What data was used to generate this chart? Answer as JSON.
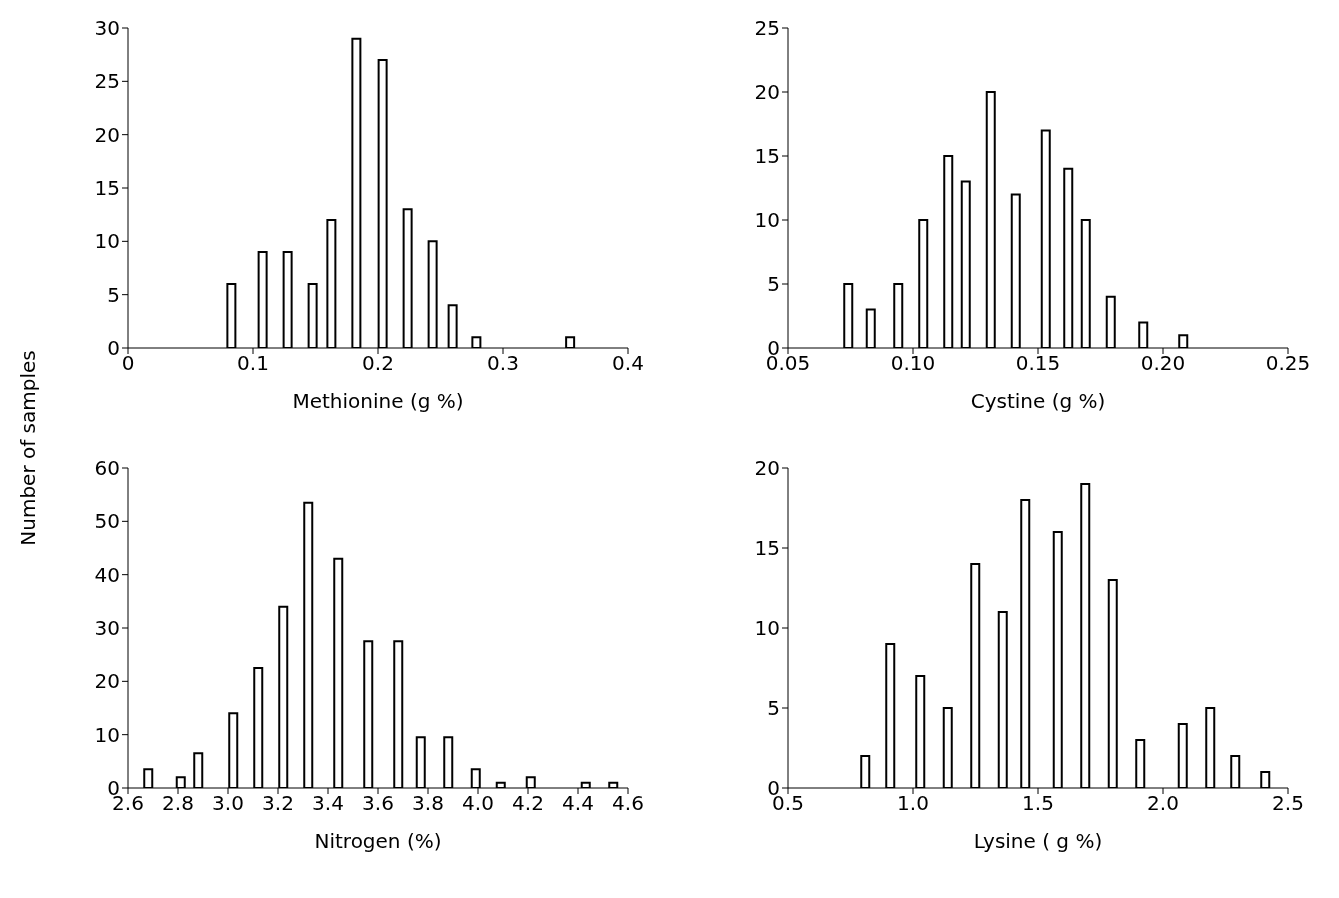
{
  "chart_data": [
    {
      "type": "bar",
      "xlabel": "Methionine (g %)",
      "ylabel": "Number of samples",
      "color": "#ffffff",
      "grid": false,
      "legend": false,
      "x": [
        0.083,
        0.108,
        0.128,
        0.148,
        0.163,
        0.183,
        0.204,
        0.224,
        0.244,
        0.26,
        0.279,
        0.354
      ],
      "values": [
        6,
        9,
        9,
        6,
        12,
        29,
        27,
        13,
        10,
        4,
        1,
        1
      ],
      "xlim": [
        0,
        0.4
      ],
      "xticks": [
        0,
        0.1,
        0.2,
        0.3,
        0.4
      ],
      "ylim": [
        0,
        30
      ],
      "yticks": [
        0,
        5,
        10,
        15,
        20,
        25,
        30
      ]
    },
    {
      "type": "bar",
      "xlabel": "Cystine (g %)",
      "color": "#ffffff",
      "grid": false,
      "legend": false,
      "x": [
        0.074,
        0.083,
        0.094,
        0.104,
        0.114,
        0.121,
        0.131,
        0.141,
        0.153,
        0.162,
        0.169,
        0.179,
        0.192,
        0.208
      ],
      "values": [
        5,
        3,
        5,
        10,
        15,
        13,
        20,
        12,
        17,
        14,
        10,
        4,
        2,
        1
      ],
      "xlim": [
        0.05,
        0.25
      ],
      "xticks": [
        0.05,
        {
          "value": 0.1,
          "label": "0.10"
        },
        0.15,
        {
          "value": 0.2,
          "label": "0.20"
        },
        0.25
      ],
      "ylim": [
        0,
        25
      ],
      "yticks": [
        0,
        5,
        10,
        15,
        20,
        25
      ]
    },
    {
      "type": "bar",
      "xlabel": "Nitrogen (%)",
      "color": "#ffffff",
      "grid": false,
      "legend": false,
      "x": [
        2.68,
        2.81,
        2.88,
        3.02,
        3.12,
        3.22,
        3.32,
        3.44,
        3.56,
        3.68,
        3.77,
        3.88,
        3.99,
        4.09,
        4.21,
        4.43,
        4.54
      ],
      "values": [
        3.5,
        2,
        6.5,
        14,
        22.5,
        34,
        53.5,
        43,
        27.5,
        27.5,
        9.5,
        9.5,
        3.5,
        1,
        2,
        1,
        1
      ],
      "xlim": [
        2.6,
        4.6
      ],
      "xticks": [
        2.6,
        2.8,
        {
          "value": 3.0,
          "label": "3.0"
        },
        3.2,
        3.4,
        3.6,
        3.8,
        {
          "value": 4.0,
          "label": "4.0"
        },
        4.2,
        4.4,
        4.6
      ],
      "ylim": [
        0,
        60
      ],
      "yticks": [
        0,
        10,
        20,
        30,
        40,
        50,
        60
      ]
    },
    {
      "type": "bar",
      "xlabel": "Lysine ( g %)",
      "color": "#ffffff",
      "grid": false,
      "legend": false,
      "x": [
        0.81,
        0.91,
        1.03,
        1.14,
        1.25,
        1.36,
        1.45,
        1.58,
        1.69,
        1.8,
        1.91,
        2.08,
        2.19,
        2.29,
        2.41
      ],
      "values": [
        2,
        9,
        7,
        5,
        14,
        11,
        18,
        16,
        19,
        13,
        3,
        4,
        5,
        2,
        1
      ],
      "xlim": [
        0.5,
        2.5
      ],
      "xticks": [
        0.5,
        {
          "value": 1.0,
          "label": "1.0"
        },
        1.5,
        {
          "value": 2.0,
          "label": "2.0"
        },
        2.5
      ],
      "ylim": [
        0,
        20
      ],
      "yticks": [
        0,
        5,
        10,
        15,
        20
      ]
    }
  ]
}
